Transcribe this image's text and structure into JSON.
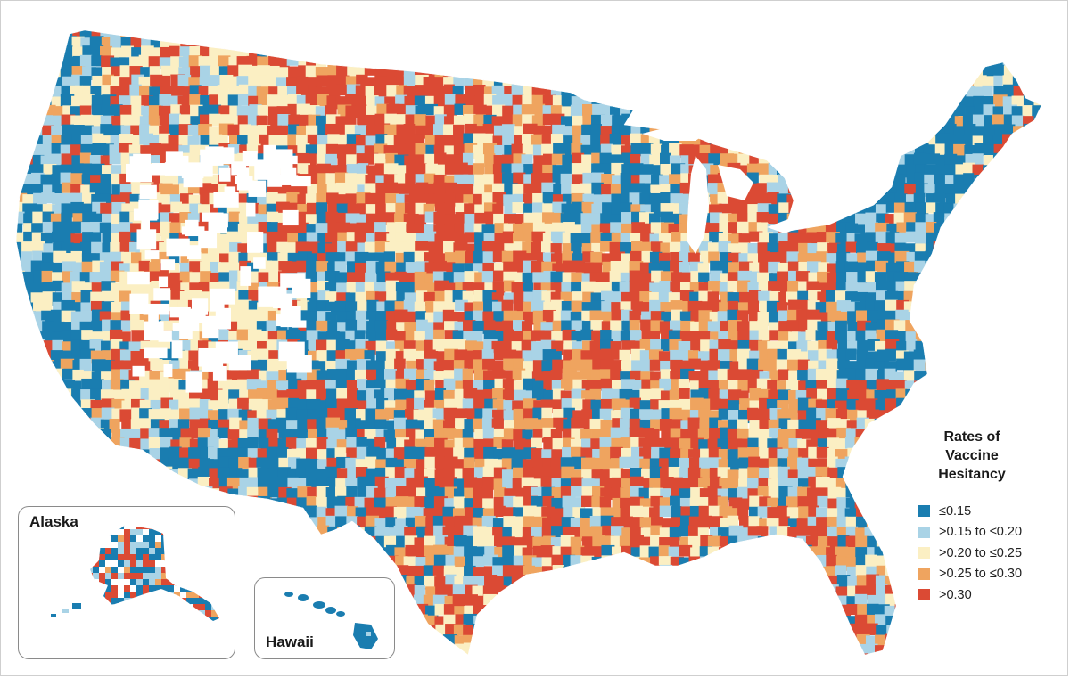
{
  "colors": {
    "bin_1": "#1a7db0",
    "bin_2": "#a9d3e6",
    "bin_3": "#fbefc3",
    "bin_4": "#efa45f",
    "bin_5": "#db4a34",
    "inset_border": "#8a8a8a"
  },
  "legend": {
    "title_line1": "Rates of Vaccine",
    "title_line2": "Hesitancy",
    "items": [
      {
        "label": "≤0.15",
        "color": "#1a7db0"
      },
      {
        "label": ">0.15 to ≤0.20",
        "color": "#a9d3e6"
      },
      {
        "label": ">0.20 to ≤0.25",
        "color": "#fbefc3"
      },
      {
        "label": ">0.25 to ≤0.30",
        "color": "#efa45f"
      },
      {
        "label": ">0.30",
        "color": "#db4a34"
      }
    ]
  },
  "insets": {
    "alaska_label": "Alaska",
    "hawaii_label": "Hawaii"
  }
}
